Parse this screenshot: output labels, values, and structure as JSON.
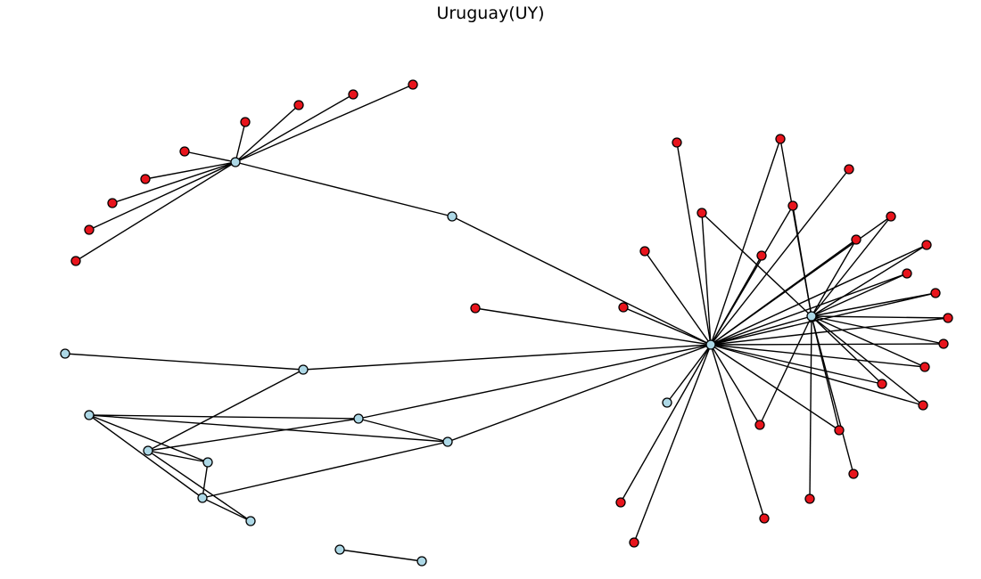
{
  "title": "Uruguay(UY)",
  "colors": {
    "red_node": "#e8141c",
    "blue_node": "#add8e6",
    "edge": "#000000"
  },
  "nodes": [
    {
      "id": "A",
      "color": "blue_node"
    },
    {
      "id": "B",
      "color": "blue_node"
    },
    {
      "id": "C",
      "color": "blue_node"
    },
    {
      "id": "D",
      "color": "blue_node"
    },
    {
      "id": "r_a1",
      "color": "red_node"
    },
    {
      "id": "r_a2",
      "color": "red_node"
    },
    {
      "id": "r_a3",
      "color": "red_node"
    },
    {
      "id": "r_a4",
      "color": "red_node"
    },
    {
      "id": "r_a5",
      "color": "red_node"
    },
    {
      "id": "r_a6",
      "color": "red_node"
    },
    {
      "id": "r_a7",
      "color": "red_node"
    },
    {
      "id": "r_a8",
      "color": "red_node"
    },
    {
      "id": "r_a9",
      "color": "red_node"
    },
    {
      "id": "b_u1",
      "color": "blue_node"
    },
    {
      "id": "b_l1",
      "color": "blue_node"
    },
    {
      "id": "b_l2",
      "color": "blue_node"
    },
    {
      "id": "b_l3",
      "color": "blue_node"
    },
    {
      "id": "b_l4",
      "color": "blue_node"
    },
    {
      "id": "b_l5",
      "color": "blue_node"
    },
    {
      "id": "b_l6",
      "color": "blue_node"
    },
    {
      "id": "b_l7",
      "color": "blue_node"
    },
    {
      "id": "b_l8",
      "color": "blue_node"
    },
    {
      "id": "b_l9",
      "color": "blue_node"
    },
    {
      "id": "b_m1",
      "color": "blue_node"
    },
    {
      "id": "b_m2",
      "color": "blue_node"
    },
    {
      "id": "r_s1",
      "color": "red_node"
    },
    {
      "id": "r_b1",
      "color": "red_node"
    },
    {
      "id": "r_b2",
      "color": "red_node"
    },
    {
      "id": "r_b3",
      "color": "red_node"
    },
    {
      "id": "r_b4",
      "color": "red_node"
    },
    {
      "id": "r_b5",
      "color": "red_node"
    },
    {
      "id": "r_b6",
      "color": "red_node"
    },
    {
      "id": "r_b7",
      "color": "red_node"
    },
    {
      "id": "r_b8",
      "color": "red_node"
    },
    {
      "id": "r_b9",
      "color": "red_node"
    },
    {
      "id": "r_b10",
      "color": "red_node"
    },
    {
      "id": "r_b11",
      "color": "red_node"
    },
    {
      "id": "r_b12",
      "color": "red_node"
    },
    {
      "id": "r_b13",
      "color": "red_node"
    },
    {
      "id": "r_b14",
      "color": "red_node"
    },
    {
      "id": "r_b15",
      "color": "red_node"
    },
    {
      "id": "r_b16",
      "color": "red_node"
    },
    {
      "id": "r_b17",
      "color": "red_node"
    },
    {
      "id": "r_b18",
      "color": "red_node"
    },
    {
      "id": "r_b19",
      "color": "red_node"
    },
    {
      "id": "r_b20",
      "color": "red_node"
    },
    {
      "id": "r_b21",
      "color": "red_node"
    },
    {
      "id": "r_b22",
      "color": "red_node"
    },
    {
      "id": "r_b23",
      "color": "red_node"
    },
    {
      "id": "r_b24",
      "color": "red_node"
    },
    {
      "id": "r_b25",
      "color": "red_node"
    }
  ],
  "edges": [
    [
      "A",
      "r_a1"
    ],
    [
      "A",
      "r_a2"
    ],
    [
      "A",
      "r_a3"
    ],
    [
      "A",
      "r_a4"
    ],
    [
      "A",
      "r_a5"
    ],
    [
      "A",
      "r_a6"
    ],
    [
      "A",
      "r_a7"
    ],
    [
      "A",
      "r_a8"
    ],
    [
      "A",
      "r_a9"
    ],
    [
      "A",
      "b_u1"
    ],
    [
      "b_u1",
      "B"
    ],
    [
      "b_l1",
      "b_l2"
    ],
    [
      "b_l2",
      "B"
    ],
    [
      "b_l3",
      "b_l2"
    ],
    [
      "b_l3",
      "b_l5"
    ],
    [
      "b_l3",
      "b_l6"
    ],
    [
      "b_l3",
      "b_l9"
    ],
    [
      "b_l4",
      "b_l6"
    ],
    [
      "b_l4",
      "b_l5"
    ],
    [
      "b_l4",
      "b_l7"
    ],
    [
      "b_l4",
      "b_l8"
    ],
    [
      "b_l5",
      "b_l8"
    ],
    [
      "b_l9",
      "b_l8"
    ],
    [
      "b_l7",
      "b_l6"
    ],
    [
      "b_l7",
      "b_l8"
    ],
    [
      "b_l7",
      "B"
    ],
    [
      "b_l6",
      "B"
    ],
    [
      "b_m1",
      "b_m2"
    ],
    [
      "r_s1",
      "B"
    ],
    [
      "B",
      "r_b1"
    ],
    [
      "B",
      "r_b2"
    ],
    [
      "B",
      "r_b3"
    ],
    [
      "B",
      "r_b4"
    ],
    [
      "B",
      "r_b5"
    ],
    [
      "B",
      "r_b6"
    ],
    [
      "B",
      "r_b7"
    ],
    [
      "B",
      "r_b8"
    ],
    [
      "B",
      "r_b9"
    ],
    [
      "B",
      "r_b10"
    ],
    [
      "B",
      "r_b11"
    ],
    [
      "B",
      "r_b12"
    ],
    [
      "B",
      "r_b13"
    ],
    [
      "B",
      "r_b14"
    ],
    [
      "B",
      "r_b15"
    ],
    [
      "B",
      "r_b16"
    ],
    [
      "B",
      "r_b17"
    ],
    [
      "B",
      "r_b18"
    ],
    [
      "B",
      "r_b19"
    ],
    [
      "B",
      "r_b20"
    ],
    [
      "B",
      "r_b21"
    ],
    [
      "B",
      "r_b22"
    ],
    [
      "B",
      "r_b23"
    ],
    [
      "B",
      "C"
    ],
    [
      "B",
      "D"
    ],
    [
      "C",
      "r_b2"
    ],
    [
      "C",
      "r_b4"
    ],
    [
      "C",
      "r_b5"
    ],
    [
      "C",
      "r_b8"
    ],
    [
      "C",
      "r_b9"
    ],
    [
      "C",
      "r_b10"
    ],
    [
      "C",
      "r_b11"
    ],
    [
      "C",
      "r_b12"
    ],
    [
      "C",
      "r_b13"
    ],
    [
      "C",
      "r_b15"
    ],
    [
      "C",
      "r_b16"
    ],
    [
      "C",
      "r_b17"
    ],
    [
      "C",
      "r_b18"
    ],
    [
      "C",
      "r_b19"
    ],
    [
      "C",
      "r_b22"
    ],
    [
      "C",
      "r_b24"
    ],
    [
      "C",
      "r_b25"
    ]
  ]
}
